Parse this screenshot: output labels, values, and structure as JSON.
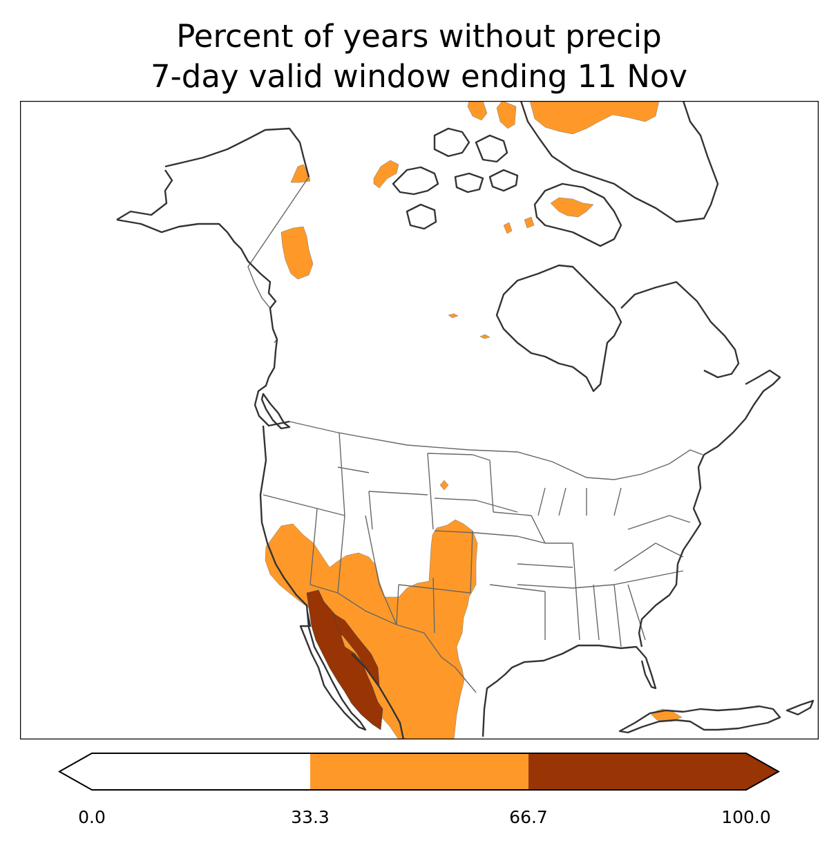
{
  "title": {
    "line1": "Percent of years without precip",
    "line2": "7-day valid window ending 11 Nov"
  },
  "colorbar": {
    "ticks": [
      "0.0",
      "33.3",
      "66.7",
      "100.0"
    ],
    "bins": [
      {
        "range": "0.0-33.3",
        "color": "#ffffff"
      },
      {
        "range": "33.3-66.7",
        "color": "#fe9929"
      },
      {
        "range": "66.7-100.0",
        "color": "#993404"
      }
    ],
    "extend": "both"
  },
  "colors": {
    "low": "#ffffff",
    "mid": "#fe9929",
    "high": "#993404",
    "coastline": "#333333",
    "borders": "#666666"
  }
}
